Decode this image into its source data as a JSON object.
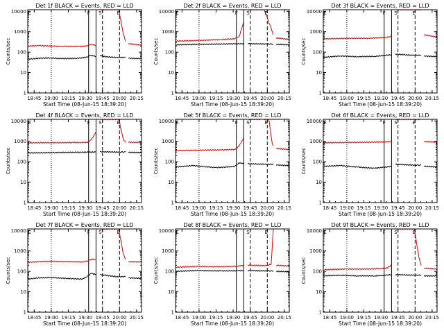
{
  "chart_data": {
    "type": "line",
    "shared": {
      "xlabel": "Start Time (08-Jun-15 18:39:20)",
      "ylabel": "Counts/sec",
      "xticks": [
        "18:45",
        "19:00",
        "19:15",
        "19:30",
        "19:45",
        "20:00",
        "20:15"
      ],
      "xtick_minutes": [
        5.67,
        20.67,
        35.67,
        50.67,
        65.67,
        80.67,
        95.67
      ],
      "yticks": [
        "1",
        "10",
        "100",
        "1000",
        "10000"
      ],
      "ylim": [
        1,
        12000
      ],
      "xlim": [
        0,
        100
      ],
      "scale": "log",
      "series_names": [
        "Events",
        "LLD"
      ],
      "series_colors": [
        "#000000",
        "#e00000"
      ],
      "marker_labels": [
        "E",
        "F",
        "S",
        "E"
      ],
      "vlines": [
        {
          "style": "dotted",
          "minute": 20.67
        },
        {
          "style": "solid",
          "minute": 53.5
        },
        {
          "style": "solid",
          "minute": 60.0
        },
        {
          "style": "dashed",
          "minute": 65.67
        },
        {
          "style": "dashed",
          "minute": 80.67
        }
      ],
      "gaps": [
        [
          60.0,
          63.5
        ],
        [
          86.0,
          88.5
        ]
      ]
    },
    "panels": [
      {
        "title": "Det 1f BLACK = Events, RED = LLD",
        "events_segments": [
          [
            [
              0,
              45
            ],
            [
              10,
              50
            ],
            [
              20,
              52
            ],
            [
              30,
              48
            ],
            [
              45,
              50
            ],
            [
              52,
              58
            ],
            [
              55,
              70
            ],
            [
              58,
              65
            ],
            [
              60,
              60
            ]
          ],
          [
            [
              63.5,
              70
            ],
            [
              68,
              60
            ],
            [
              78,
              55
            ],
            [
              86,
              55
            ]
          ],
          [
            [
              88.5,
              50
            ],
            [
              100,
              48
            ]
          ]
        ],
        "lld_segments": [
          [
            [
              0,
              200
            ],
            [
              10,
              210
            ],
            [
              20,
              200
            ],
            [
              30,
              190
            ],
            [
              45,
              190
            ],
            [
              52,
              200
            ],
            [
              55,
              240
            ],
            [
              58,
              230
            ],
            [
              60,
              220
            ]
          ],
          [
            [
              63.5,
              12000
            ],
            [
              72,
              12000
            ],
            [
              80,
              12000
            ],
            [
              84,
              800
            ],
            [
              86,
              350
            ]
          ],
          [
            [
              88.5,
              260
            ],
            [
              100,
              220
            ]
          ]
        ]
      },
      {
        "title": "Det 2f BLACK = Events, RED = LLD",
        "events_segments": [
          [
            [
              0,
              230
            ],
            [
              20,
              240
            ],
            [
              40,
              250
            ],
            [
              60,
              260
            ]
          ],
          [
            [
              63.5,
              260
            ],
            [
              80,
              250
            ],
            [
              86,
              250
            ]
          ],
          [
            [
              88.5,
              240
            ],
            [
              100,
              230
            ]
          ]
        ],
        "lld_segments": [
          [
            [
              0,
              350
            ],
            [
              20,
              370
            ],
            [
              40,
              420
            ],
            [
              52,
              450
            ],
            [
              56,
              600
            ],
            [
              60,
              3000
            ]
          ],
          [
            [
              63.5,
              12000
            ],
            [
              72,
              12000
            ],
            [
              78,
              12000
            ],
            [
              84,
              1500
            ],
            [
              86,
              700
            ]
          ],
          [
            [
              88.5,
              500
            ],
            [
              100,
              420
            ]
          ]
        ]
      },
      {
        "title": "Det 3f BLACK = Events, RED = LLD",
        "events_segments": [
          [
            [
              0,
              55
            ],
            [
              15,
              65
            ],
            [
              30,
              60
            ],
            [
              45,
              62
            ],
            [
              55,
              70
            ],
            [
              60,
              75
            ]
          ],
          [
            [
              63.5,
              80
            ],
            [
              80,
              70
            ],
            [
              86,
              70
            ]
          ],
          [
            [
              88.5,
              65
            ],
            [
              100,
              60
            ]
          ]
        ],
        "lld_segments": [
          [
            [
              0,
              450
            ],
            [
              20,
              470
            ],
            [
              40,
              480
            ],
            [
              55,
              520
            ],
            [
              60,
              600
            ]
          ],
          [
            [
              63.5,
              12000
            ],
            [
              80,
              12000
            ],
            [
              86,
              12000
            ]
          ],
          [
            [
              88.5,
              700
            ],
            [
              100,
              550
            ]
          ]
        ]
      },
      {
        "title": "Det 4f BLACK = Events, RED = LLD",
        "events_segments": [
          [
            [
              0,
              270
            ],
            [
              20,
              280
            ],
            [
              40,
              290
            ],
            [
              60,
              300
            ]
          ],
          [
            [
              63.5,
              310
            ],
            [
              80,
              300
            ],
            [
              86,
              300
            ]
          ],
          [
            [
              88.5,
              290
            ],
            [
              100,
              280
            ]
          ]
        ],
        "lld_segments": [
          [
            [
              0,
              850
            ],
            [
              20,
              860
            ],
            [
              40,
              870
            ],
            [
              52,
              880
            ],
            [
              56,
              1200
            ],
            [
              60,
              3000
            ]
          ],
          [
            [
              63.5,
              12000
            ],
            [
              74,
              12000
            ],
            [
              80,
              12000
            ],
            [
              84,
              1200
            ],
            [
              86,
              900
            ]
          ],
          [
            [
              88.5,
              900
            ],
            [
              100,
              880
            ]
          ]
        ]
      },
      {
        "title": "Det 5f BLACK = Events, RED = LLD",
        "events_segments": [
          [
            [
              0,
              55
            ],
            [
              15,
              65
            ],
            [
              25,
              58
            ],
            [
              35,
              52
            ],
            [
              45,
              55
            ],
            [
              52,
              60
            ],
            [
              56,
              90
            ],
            [
              60,
              80
            ]
          ],
          [
            [
              63.5,
              80
            ],
            [
              78,
              75
            ],
            [
              86,
              75
            ]
          ],
          [
            [
              88.5,
              70
            ],
            [
              100,
              65
            ]
          ]
        ],
        "lld_segments": [
          [
            [
              0,
              350
            ],
            [
              20,
              370
            ],
            [
              40,
              380
            ],
            [
              52,
              400
            ],
            [
              56,
              600
            ],
            [
              60,
              1500
            ]
          ],
          [
            [
              63.5,
              12000
            ],
            [
              76,
              12000
            ],
            [
              82,
              12000
            ],
            [
              85,
              800
            ],
            [
              86,
              600
            ]
          ],
          [
            [
              88.5,
              450
            ],
            [
              100,
              400
            ]
          ]
        ]
      },
      {
        "title": "Det 6f BLACK = Events, RED = LLD",
        "events_segments": [
          [
            [
              0,
              60
            ],
            [
              15,
              65
            ],
            [
              30,
              55
            ],
            [
              45,
              48
            ],
            [
              55,
              55
            ],
            [
              60,
              60
            ]
          ],
          [
            [
              63.5,
              75
            ],
            [
              80,
              68
            ],
            [
              86,
              68
            ]
          ],
          [
            [
              88.5,
              60
            ],
            [
              100,
              55
            ]
          ]
        ],
        "lld_segments": [
          [
            [
              0,
              850
            ],
            [
              20,
              880
            ],
            [
              40,
              900
            ],
            [
              55,
              950
            ],
            [
              60,
              1000
            ]
          ],
          [
            [
              63.5,
              12000
            ],
            [
              80,
              12000
            ],
            [
              86,
              12000
            ]
          ],
          [
            [
              88.5,
              1000
            ],
            [
              100,
              900
            ]
          ]
        ]
      },
      {
        "title": "Det 7f BLACK = Events, RED = LLD",
        "events_segments": [
          [
            [
              0,
              42
            ],
            [
              10,
              48
            ],
            [
              20,
              50
            ],
            [
              35,
              45
            ],
            [
              48,
              42
            ],
            [
              53,
              60
            ],
            [
              56,
              80
            ],
            [
              60,
              70
            ]
          ],
          [
            [
              63.5,
              70
            ],
            [
              78,
              55
            ],
            [
              86,
              55
            ]
          ],
          [
            [
              88.5,
              48
            ],
            [
              100,
              45
            ]
          ]
        ],
        "lld_segments": [
          [
            [
              0,
              280
            ],
            [
              10,
              300
            ],
            [
              20,
              310
            ],
            [
              35,
              300
            ],
            [
              48,
              290
            ],
            [
              53,
              320
            ],
            [
              56,
              400
            ],
            [
              60,
              380
            ]
          ],
          [
            [
              63.5,
              12000
            ],
            [
              72,
              12000
            ],
            [
              80,
              12000
            ],
            [
              84,
              700
            ],
            [
              86,
              400
            ]
          ],
          [
            [
              88.5,
              300
            ],
            [
              100,
              290
            ]
          ]
        ]
      },
      {
        "title": "Det 8f BLACK = Events, RED = LLD",
        "events_segments": [
          [
            [
              0,
              100
            ],
            [
              20,
              110
            ],
            [
              40,
              105
            ],
            [
              55,
              108
            ],
            [
              60,
              110
            ]
          ],
          [
            [
              63.5,
              110
            ],
            [
              80,
              105
            ],
            [
              86,
              105
            ]
          ],
          [
            [
              88.5,
              100
            ],
            [
              100,
              95
            ]
          ]
        ],
        "lld_segments": [
          [
            [
              0,
              160
            ],
            [
              20,
              175
            ],
            [
              40,
              170
            ],
            [
              55,
              180
            ],
            [
              60,
              200
            ]
          ],
          [
            [
              63.5,
              200
            ],
            [
              80,
              190
            ],
            [
              84,
              220
            ],
            [
              86,
              12000
            ]
          ],
          [
            [
              88.5,
              200
            ],
            [
              100,
              180
            ]
          ]
        ]
      },
      {
        "title": "Det 9f BLACK = Events, RED = LLD",
        "events_segments": [
          [
            [
              0,
              60
            ],
            [
              15,
              65
            ],
            [
              30,
              60
            ],
            [
              45,
              60
            ],
            [
              55,
              65
            ],
            [
              60,
              70
            ]
          ],
          [
            [
              63.5,
              70
            ],
            [
              80,
              65
            ],
            [
              86,
              65
            ]
          ],
          [
            [
              88.5,
              60
            ],
            [
              100,
              60
            ]
          ]
        ],
        "lld_segments": [
          [
            [
              0,
              120
            ],
            [
              20,
              130
            ],
            [
              40,
              130
            ],
            [
              55,
              140
            ],
            [
              60,
              200
            ]
          ],
          [
            [
              63.5,
              12000
            ],
            [
              80,
              12000
            ],
            [
              84,
              500
            ],
            [
              86,
              200
            ]
          ],
          [
            [
              88.5,
              140
            ],
            [
              100,
              130
            ]
          ]
        ]
      }
    ]
  }
}
